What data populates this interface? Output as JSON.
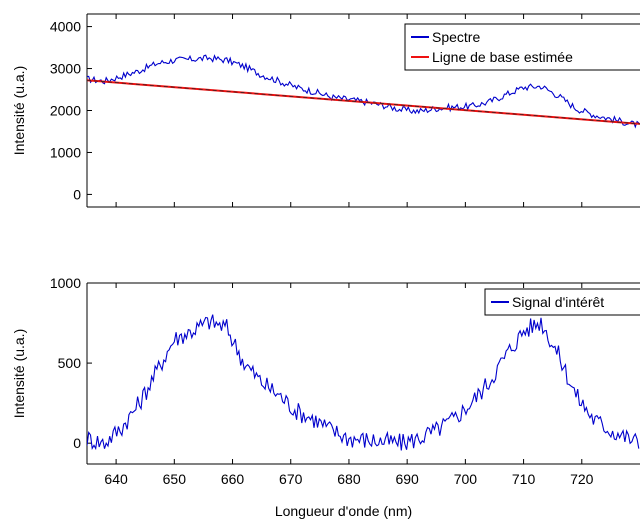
{
  "chart_data": [
    {
      "type": "line",
      "ylabel": "Intensité (u.a.)",
      "ylim": [
        -300,
        4300
      ],
      "yticks": [
        0,
        1000,
        2000,
        3000,
        4000
      ],
      "ytick_labels": [
        "0",
        "1000",
        "2000",
        "3000",
        "4000"
      ],
      "xlim": [
        635,
        730
      ],
      "xticks": [
        640,
        650,
        660,
        670,
        680,
        690,
        700,
        710,
        720
      ],
      "legend_position": "top-right",
      "series": [
        {
          "name": "Spectre",
          "color": "#0000cc",
          "x": [
            635,
            638,
            641,
            644,
            647,
            650,
            653,
            656,
            659,
            662,
            665,
            668,
            671,
            674,
            677,
            680,
            683,
            686,
            689,
            692,
            695,
            698,
            701,
            704,
            707,
            710,
            713,
            716,
            719,
            722,
            725,
            728,
            730
          ],
          "y": [
            2750,
            2700,
            2820,
            2950,
            3120,
            3200,
            3220,
            3250,
            3200,
            3050,
            2850,
            2700,
            2550,
            2450,
            2320,
            2260,
            2200,
            2120,
            2020,
            1980,
            2050,
            2080,
            2100,
            2200,
            2380,
            2550,
            2580,
            2350,
            2050,
            1900,
            1800,
            1700,
            1650
          ]
        },
        {
          "name": "Ligne de base estimée",
          "color": "#ee1111",
          "x": [
            635,
            730
          ],
          "y": [
            2720,
            1680
          ]
        }
      ]
    },
    {
      "type": "line",
      "xlabel": "Longueur d'onde (nm)",
      "ylabel": "Intensité (u.a.)",
      "ylim": [
        -130,
        1000
      ],
      "yticks": [
        0,
        500,
        1000
      ],
      "ytick_labels": [
        "0",
        "500",
        "1000"
      ],
      "xlim": [
        635,
        730
      ],
      "xticks": [
        640,
        650,
        660,
        670,
        680,
        690,
        700,
        710,
        720
      ],
      "xtick_labels": [
        "640",
        "650",
        "660",
        "670",
        "680",
        "690",
        "700",
        "710",
        "720"
      ],
      "legend_position": "top-right",
      "series": [
        {
          "name": "Signal d'intérêt",
          "color": "#0000cc",
          "x": [
            635,
            638,
            641,
            644,
            647,
            650,
            653,
            656,
            659,
            662,
            665,
            668,
            671,
            674,
            677,
            680,
            683,
            686,
            689,
            692,
            695,
            698,
            701,
            704,
            707,
            710,
            713,
            716,
            719,
            722,
            725,
            728,
            730
          ],
          "y": [
            30,
            0,
            100,
            250,
            450,
            650,
            700,
            760,
            720,
            500,
            380,
            300,
            200,
            150,
            80,
            30,
            20,
            10,
            0,
            30,
            80,
            150,
            250,
            380,
            550,
            700,
            760,
            550,
            300,
            150,
            80,
            30,
            0
          ]
        }
      ]
    }
  ]
}
